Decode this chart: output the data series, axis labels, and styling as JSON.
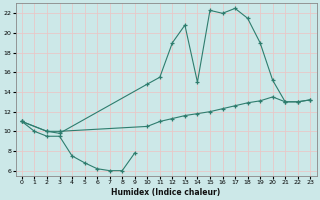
{
  "xlabel": "Humidex (Indice chaleur)",
  "bg_color": "#cce8e8",
  "grid_color": "#e8c8c8",
  "line_color": "#2e7d6e",
  "xlim": [
    -0.5,
    23.5
  ],
  "ylim": [
    5.5,
    23
  ],
  "xticks": [
    0,
    1,
    2,
    3,
    4,
    5,
    6,
    7,
    8,
    9,
    10,
    11,
    12,
    13,
    14,
    15,
    16,
    17,
    18,
    19,
    20,
    21,
    22,
    23
  ],
  "yticks": [
    6,
    8,
    10,
    12,
    14,
    16,
    18,
    20,
    22
  ],
  "series1_x": [
    0,
    1,
    2,
    3,
    4,
    5,
    6,
    7,
    8,
    9
  ],
  "series1_y": [
    11,
    10,
    9.5,
    9.5,
    7.5,
    6.8,
    6.2,
    6.0,
    6.0,
    7.8
  ],
  "series2_x": [
    0,
    2,
    3,
    10,
    11,
    12,
    13,
    14,
    15,
    16,
    17,
    18,
    19,
    20,
    21,
    22,
    23
  ],
  "series2_y": [
    11,
    10,
    10,
    10.5,
    11.0,
    11.3,
    11.6,
    11.8,
    12.0,
    12.3,
    12.6,
    12.9,
    13.1,
    13.5,
    13.0,
    13.0,
    13.2
  ],
  "series3_x": [
    0,
    2,
    3,
    10,
    11,
    12,
    13,
    14,
    15,
    16,
    17,
    18,
    19,
    20,
    21,
    22,
    23
  ],
  "series3_y": [
    11,
    10,
    9.8,
    14.8,
    15.5,
    19.0,
    20.8,
    15.0,
    22.3,
    22.0,
    22.5,
    21.5,
    19.0,
    15.2,
    13.0,
    13.0,
    13.2
  ]
}
